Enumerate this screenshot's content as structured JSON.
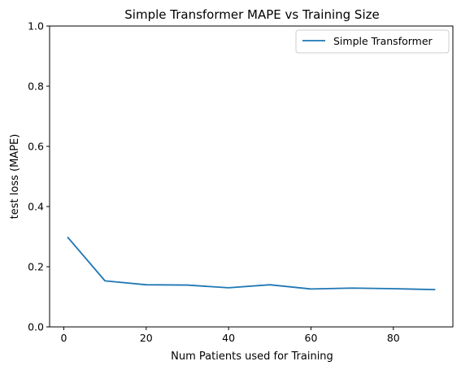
{
  "chart_data": {
    "type": "line",
    "title": "Simple Transformer MAPE vs Training Size",
    "xlabel": "Num Patients used for Training",
    "ylabel": "test loss (MAPE)",
    "xlim": [
      -3.45,
      94.45
    ],
    "ylim": [
      0.0,
      1.0
    ],
    "xticks": [
      0,
      20,
      40,
      60,
      80
    ],
    "yticks": [
      0.0,
      0.2,
      0.4,
      0.6,
      0.8,
      1.0
    ],
    "xtick_labels": [
      "0",
      "20",
      "40",
      "60",
      "80"
    ],
    "ytick_labels": [
      "0.0",
      "0.2",
      "0.4",
      "0.6",
      "0.8",
      "1.0"
    ],
    "grid": false,
    "legend_position": "top-right",
    "series": [
      {
        "name": "Simple Transformer",
        "color": "#1f77b4",
        "x": [
          1,
          10,
          20,
          30,
          40,
          50,
          60,
          70,
          80,
          90
        ],
        "y": [
          0.297,
          0.153,
          0.14,
          0.139,
          0.13,
          0.14,
          0.126,
          0.129,
          0.127,
          0.124
        ]
      }
    ]
  }
}
